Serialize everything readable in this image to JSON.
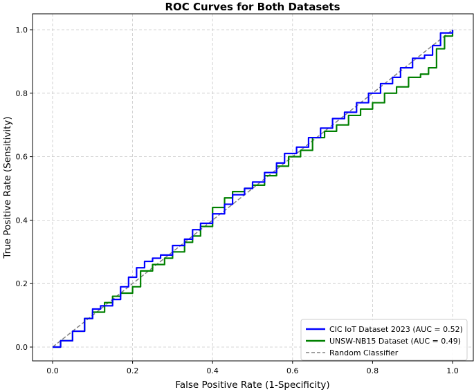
{
  "chart_data": {
    "type": "line",
    "title": "ROC Curves for Both Datasets",
    "xlabel": "False Positive Rate (1-Specificity)",
    "ylabel": "True Positive Rate (Sensitivity)",
    "xlim": [
      -0.05,
      1.05
    ],
    "ylim": [
      -0.05,
      1.05
    ],
    "xticks": [
      "0.0",
      "0.2",
      "0.4",
      "0.6",
      "0.8",
      "1.0"
    ],
    "yticks": [
      "0.0",
      "0.2",
      "0.4",
      "0.6",
      "0.8",
      "1.0"
    ],
    "grid": true,
    "legend_position": "lower-right",
    "series": [
      {
        "name": "CIC IoT Dataset 2023 (AUC = 0.52)",
        "color": "#0000ff",
        "style": "solid",
        "x": [
          0.0,
          0.02,
          0.05,
          0.08,
          0.1,
          0.12,
          0.15,
          0.17,
          0.19,
          0.21,
          0.23,
          0.25,
          0.27,
          0.3,
          0.33,
          0.35,
          0.37,
          0.4,
          0.43,
          0.45,
          0.48,
          0.5,
          0.53,
          0.56,
          0.58,
          0.61,
          0.64,
          0.67,
          0.7,
          0.73,
          0.76,
          0.79,
          0.82,
          0.85,
          0.87,
          0.9,
          0.93,
          0.95,
          0.97,
          1.0
        ],
        "y": [
          0.0,
          0.02,
          0.05,
          0.09,
          0.12,
          0.13,
          0.15,
          0.19,
          0.22,
          0.25,
          0.27,
          0.28,
          0.29,
          0.32,
          0.34,
          0.37,
          0.39,
          0.42,
          0.45,
          0.48,
          0.5,
          0.52,
          0.55,
          0.58,
          0.61,
          0.63,
          0.66,
          0.69,
          0.72,
          0.74,
          0.77,
          0.8,
          0.83,
          0.85,
          0.88,
          0.91,
          0.92,
          0.95,
          0.99,
          1.0
        ]
      },
      {
        "name": "UNSW-NB15 Dataset (AUC = 0.49)",
        "color": "#008000",
        "style": "solid",
        "x": [
          0.0,
          0.02,
          0.05,
          0.08,
          0.1,
          0.13,
          0.15,
          0.17,
          0.2,
          0.22,
          0.25,
          0.28,
          0.3,
          0.33,
          0.35,
          0.37,
          0.4,
          0.43,
          0.45,
          0.48,
          0.5,
          0.53,
          0.56,
          0.59,
          0.62,
          0.65,
          0.68,
          0.71,
          0.74,
          0.77,
          0.8,
          0.83,
          0.86,
          0.89,
          0.92,
          0.94,
          0.96,
          0.98,
          1.0
        ],
        "y": [
          0.0,
          0.02,
          0.05,
          0.09,
          0.11,
          0.14,
          0.16,
          0.17,
          0.19,
          0.24,
          0.26,
          0.28,
          0.3,
          0.33,
          0.35,
          0.38,
          0.44,
          0.47,
          0.49,
          0.5,
          0.51,
          0.54,
          0.57,
          0.6,
          0.62,
          0.66,
          0.68,
          0.7,
          0.73,
          0.75,
          0.77,
          0.8,
          0.82,
          0.85,
          0.86,
          0.88,
          0.94,
          0.98,
          1.0
        ]
      },
      {
        "name": "Random Classifier",
        "color": "#808080",
        "style": "dashed",
        "x": [
          0.0,
          1.0
        ],
        "y": [
          0.0,
          1.0
        ]
      }
    ]
  }
}
